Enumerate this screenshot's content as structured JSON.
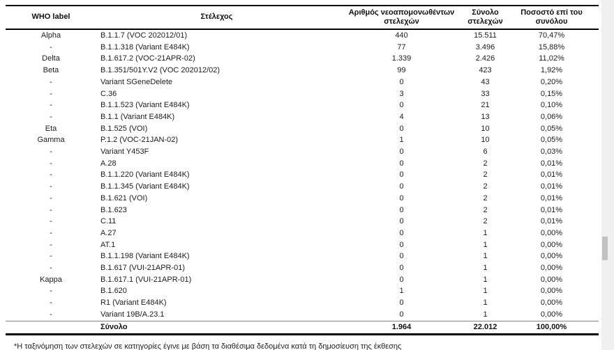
{
  "table": {
    "columns": [
      "WHO label",
      "Στέλεχος",
      "Αριθμός νεοαπομονωθέντων στελεχών",
      "Σύνολο στελεχών",
      "Ποσοστό επί του συνόλου"
    ],
    "rows": [
      {
        "who": "Alpha",
        "strain": "B.1.1.7 (VOC 202012/01)",
        "new_isolates": "440",
        "total": "15.511",
        "percent": "70,47%"
      },
      {
        "who": "-",
        "strain": "B.1.1.318 (Variant E484K)",
        "new_isolates": "77",
        "total": "3.496",
        "percent": "15,88%"
      },
      {
        "who": "Delta",
        "strain": "B.1.617.2 (VOC-21APR-02)",
        "new_isolates": "1.339",
        "total": "2.426",
        "percent": "11,02%"
      },
      {
        "who": "Beta",
        "strain": "B.1.351/501Y.V2 (VOC 202012/02)",
        "new_isolates": "99",
        "total": "423",
        "percent": "1,92%"
      },
      {
        "who": "-",
        "strain": "Variant SGeneDelete",
        "new_isolates": "0",
        "total": "43",
        "percent": "0,20%"
      },
      {
        "who": "-",
        "strain": "C.36",
        "new_isolates": "3",
        "total": "33",
        "percent": "0,15%"
      },
      {
        "who": "-",
        "strain": "B.1.1.523 (Variant E484K)",
        "new_isolates": "0",
        "total": "21",
        "percent": "0,10%"
      },
      {
        "who": "-",
        "strain": "B.1.1 (Variant E484K)",
        "new_isolates": "4",
        "total": "13",
        "percent": "0,06%"
      },
      {
        "who": "Eta",
        "strain": "B.1.525 (VOI)",
        "new_isolates": "0",
        "total": "10",
        "percent": "0,05%"
      },
      {
        "who": "Gamma",
        "strain": "P.1.2 (VOC-21JAN-02)",
        "new_isolates": "1",
        "total": "10",
        "percent": "0,05%"
      },
      {
        "who": "-",
        "strain": "Variant Y453F",
        "new_isolates": "0",
        "total": "6",
        "percent": "0,03%"
      },
      {
        "who": "-",
        "strain": "A.28",
        "new_isolates": "0",
        "total": "2",
        "percent": "0,01%"
      },
      {
        "who": "-",
        "strain": "B.1.1.220 (Variant E484K)",
        "new_isolates": "0",
        "total": "2",
        "percent": "0,01%"
      },
      {
        "who": "-",
        "strain": "B.1.1.345 (Variant E484K)",
        "new_isolates": "0",
        "total": "2",
        "percent": "0,01%"
      },
      {
        "who": "-",
        "strain": "B.1.621 (VOI)",
        "new_isolates": "0",
        "total": "2",
        "percent": "0,01%"
      },
      {
        "who": "-",
        "strain": "B.1.623",
        "new_isolates": "0",
        "total": "2",
        "percent": "0,01%"
      },
      {
        "who": "-",
        "strain": "C.11",
        "new_isolates": "0",
        "total": "2",
        "percent": "0,01%"
      },
      {
        "who": "-",
        "strain": "A.27",
        "new_isolates": "0",
        "total": "1",
        "percent": "0,00%"
      },
      {
        "who": "-",
        "strain": "AT.1",
        "new_isolates": "0",
        "total": "1",
        "percent": "0,00%"
      },
      {
        "who": "-",
        "strain": "B.1.1.198 (Variant E484K)",
        "new_isolates": "0",
        "total": "1",
        "percent": "0,00%"
      },
      {
        "who": "-",
        "strain": "B.1.617 (VUI-21APR-01)",
        "new_isolates": "0",
        "total": "1",
        "percent": "0,00%"
      },
      {
        "who": "Kappa",
        "strain": "B.1.617.1 (VUI-21APR-01)",
        "new_isolates": "0",
        "total": "1",
        "percent": "0,00%"
      },
      {
        "who": "-",
        "strain": "B.1.620",
        "new_isolates": "1",
        "total": "1",
        "percent": "0,00%"
      },
      {
        "who": "-",
        "strain": "R1 (Variant E484K)",
        "new_isolates": "0",
        "total": "1",
        "percent": "0,00%"
      },
      {
        "who": "-",
        "strain": "Variant 19B/A.23.1",
        "new_isolates": "0",
        "total": "1",
        "percent": "0,00%"
      }
    ],
    "total_row": {
      "who": "",
      "strain": "Σύνολο",
      "new_isolates": "1.964",
      "total": "22.012",
      "percent": "100,00%"
    }
  },
  "footnote": "*Η ταξινόμηση των στελεχών σε κατηγορίες έγινε με βάση τα διαθέσιμα δεδομένα κατά τη δημοσίευση της έκθεσης",
  "colors": {
    "border_black": "#000000",
    "border_gray": "#808080",
    "scroll_track": "#f0f0f0",
    "scroll_thumb": "#c2c2c2"
  }
}
